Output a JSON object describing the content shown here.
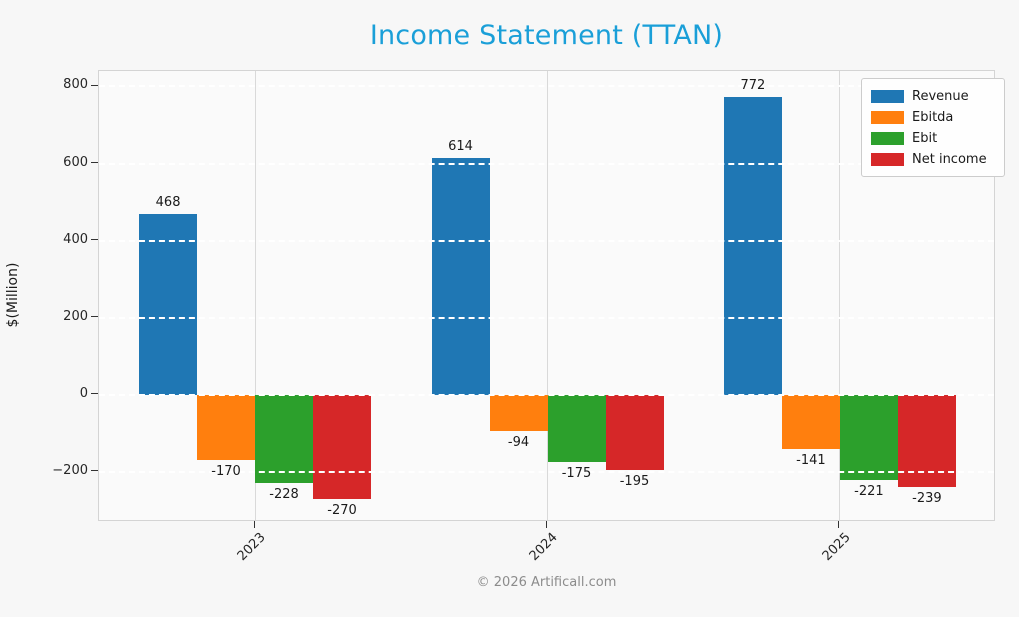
{
  "footer": "© 2026 Artificall.com",
  "colors": {
    "title": "#1a9fd8",
    "figure_background": "#f7f7f7",
    "axes_background": "#fafafa",
    "vertical_grid": "#d9d9d9",
    "horizontal_grid": "#ffffff"
  },
  "chart_data": {
    "type": "bar",
    "title": "Income Statement (TTAN)",
    "xlabel": "",
    "ylabel": "$(Million)",
    "categories": [
      "2023",
      "2024",
      "2025"
    ],
    "series": [
      {
        "name": "Revenue",
        "color": "#1f77b4",
        "values": [
          468,
          614,
          772
        ]
      },
      {
        "name": "Ebitda",
        "color": "#ff7f0e",
        "values": [
          -170,
          -94,
          -141
        ]
      },
      {
        "name": "Ebit",
        "color": "#2ca02c",
        "values": [
          -228,
          -175,
          -221
        ]
      },
      {
        "name": "Net income",
        "color": "#d62728",
        "values": [
          -270,
          -195,
          -239
        ]
      }
    ],
    "yticks": [
      800,
      600,
      400,
      200,
      0,
      -200
    ],
    "ytick_labels": [
      "800",
      "600",
      "400",
      "200",
      "0",
      "−200"
    ],
    "ylim": [
      -330,
      840
    ],
    "grid": true,
    "legend_position": "upper right",
    "bar_value_labels_shown": true
  }
}
